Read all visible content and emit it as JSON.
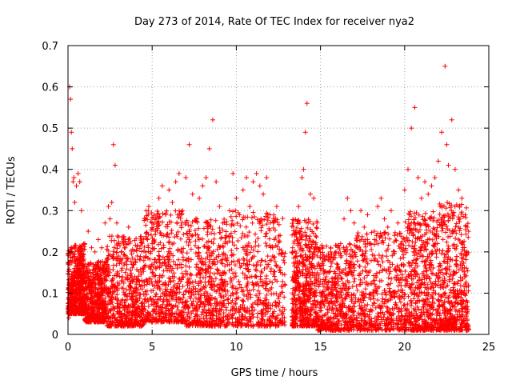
{
  "chart_data": {
    "type": "scatter",
    "title": "Day 273 of 2014, Rate Of TEC Index for receiver nya2",
    "xlabel": "GPS time / hours",
    "ylabel": "ROTI / TECUs",
    "xlim": [
      0,
      25
    ],
    "ylim": [
      0,
      0.7
    ],
    "xticks": [
      0,
      5,
      10,
      15,
      20,
      25
    ],
    "yticks": [
      0,
      0.1,
      0.2,
      0.3,
      0.4,
      0.5,
      0.6,
      0.7
    ],
    "xtick_labels": [
      "0",
      "5",
      "10",
      "15",
      "20",
      "25"
    ],
    "ytick_labels": [
      "0",
      "0.1",
      "0.2",
      "0.3",
      "0.4",
      "0.5",
      "0.6",
      "0.7"
    ],
    "grid": true,
    "marker": "+",
    "color": "#ff0000",
    "series": [
      {
        "x": [
          0.1,
          0.15,
          0.2,
          0.25,
          0.3,
          0.35,
          0.4,
          0.5,
          0.6,
          0.7,
          0.8,
          1.0,
          1.2,
          1.4,
          1.6,
          1.8,
          2.0,
          2.2,
          2.4,
          2.5,
          2.6,
          2.7,
          2.8,
          2.9,
          3.0,
          3.2,
          3.4,
          3.6,
          3.8,
          4.0,
          4.2,
          4.4,
          4.6,
          4.8,
          5.0,
          5.2,
          5.4,
          5.6,
          5.8,
          6.0,
          6.2,
          6.4,
          6.6,
          6.8,
          7.0,
          7.2,
          7.4,
          7.6,
          7.8,
          8.0,
          8.2,
          8.4,
          8.6,
          8.8,
          9.0,
          9.2,
          9.4,
          9.6,
          9.8,
          10.0,
          10.2,
          10.4,
          10.6,
          10.8,
          11.0,
          11.2,
          11.4,
          11.6,
          11.8,
          12.0,
          12.2,
          12.4,
          12.6,
          12.8,
          13.5,
          13.7,
          13.9,
          14.0,
          14.1,
          14.2,
          14.4,
          14.6,
          14.8,
          15.0,
          15.2,
          15.4,
          15.6,
          15.8,
          16.0,
          16.2,
          16.4,
          16.6,
          16.8,
          17.0,
          17.2,
          17.4,
          17.6,
          17.8,
          18.0,
          18.2,
          18.4,
          18.6,
          18.8,
          19.0,
          19.2,
          19.4,
          19.6,
          19.8,
          20.0,
          20.2,
          20.4,
          20.6,
          20.8,
          21.0,
          21.2,
          21.4,
          21.6,
          21.8,
          22.0,
          22.2,
          22.4,
          22.5,
          22.6,
          22.8,
          23.0,
          23.2,
          23.4,
          23.6,
          23.8,
          0.12,
          0.18,
          0.22,
          0.28,
          0.32,
          0.38,
          0.44,
          0.15,
          0.25,
          0.35,
          0.39,
          0.1,
          0.2,
          0.14,
          0.22,
          0.18,
          0.12,
          0.24,
          0.38,
          0.28,
          0.32,
          0.46,
          0.41,
          0.27,
          0.19,
          0.13,
          0.21,
          0.26,
          0.17,
          0.08,
          0.05,
          0.11,
          0.28,
          0.31,
          0.22,
          0.25,
          0.33,
          0.36,
          0.29,
          0.35,
          0.32,
          0.37,
          0.39,
          0.3,
          0.38,
          0.46,
          0.34,
          0.28,
          0.33,
          0.36,
          0.38,
          0.45,
          0.52,
          0.37,
          0.31,
          0.27,
          0.24,
          0.3,
          0.39,
          0.33,
          0.29,
          0.35,
          0.38,
          0.31,
          0.37,
          0.39,
          0.36,
          0.34,
          0.38,
          0.29,
          0.27,
          0.31,
          0.24,
          0.18,
          0.25,
          0.31,
          0.38,
          0.4,
          0.49,
          0.56,
          0.34,
          0.33,
          0.27,
          0.16,
          0.19,
          0.15,
          0.2,
          0.12,
          0.17,
          0.22,
          0.28,
          0.33,
          0.3,
          0.27,
          0.24,
          0.3,
          0.26,
          0.29,
          0.22,
          0.25,
          0.31,
          0.33,
          0.28,
          0.26,
          0.3,
          0.24,
          0.27,
          0.21,
          0.35,
          0.4,
          0.5,
          0.55,
          0.38,
          0.33,
          0.37,
          0.34,
          0.36,
          0.38,
          0.42,
          0.49,
          0.65,
          0.46,
          0.41,
          0.52,
          0.4,
          0.35,
          0.33,
          0.29,
          0.25
        ],
        "y": [
          0.6,
          0.57,
          0.49,
          0.45,
          0.37,
          0.38,
          0.32,
          0.36,
          0.39,
          0.37,
          0.3,
          0.22,
          0.25,
          0.21,
          0.2,
          0.23,
          0.21,
          0.27,
          0.31,
          0.28,
          0.32,
          0.46,
          0.41,
          0.27,
          0.19,
          0.13,
          0.21,
          0.26,
          0.17,
          0.08,
          0.05,
          0.11,
          0.28,
          0.31,
          0.22,
          0.25,
          0.33,
          0.36,
          0.29,
          0.35,
          0.32,
          0.37,
          0.39,
          0.3,
          0.38,
          0.46,
          0.34,
          0.28,
          0.33,
          0.36,
          0.38,
          0.45,
          0.52,
          0.37,
          0.31,
          0.27,
          0.24,
          0.3,
          0.39,
          0.33,
          0.29,
          0.35,
          0.38,
          0.31,
          0.37,
          0.39,
          0.36,
          0.34,
          0.38,
          0.29,
          0.27,
          0.31,
          0.24,
          0.18,
          0.25,
          0.31,
          0.38,
          0.4,
          0.49,
          0.56,
          0.34,
          0.33,
          0.27,
          0.16,
          0.19,
          0.15,
          0.2,
          0.12,
          0.17,
          0.22,
          0.28,
          0.33,
          0.3,
          0.27,
          0.24,
          0.3,
          0.26,
          0.29,
          0.22,
          0.25,
          0.31,
          0.33,
          0.28,
          0.26,
          0.3,
          0.24,
          0.27,
          0.21,
          0.35,
          0.4,
          0.5,
          0.55,
          0.38,
          0.33,
          0.37,
          0.34,
          0.36,
          0.38,
          0.42,
          0.49,
          0.65,
          0.46,
          0.41,
          0.52,
          0.4,
          0.35,
          0.33,
          0.29,
          0.25,
          0.1,
          0.12,
          0.14,
          0.11,
          0.09,
          0.13,
          0.15,
          0.08,
          0.1,
          0.12,
          0.14,
          0.07,
          0.09,
          0.11,
          0.1,
          0.08,
          0.12,
          0.1,
          0.09,
          0.11,
          0.13,
          0.1,
          0.12,
          0.09,
          0.08,
          0.06,
          0.1,
          0.12,
          0.09,
          0.05,
          0.04,
          0.07,
          0.11,
          0.13,
          0.12,
          0.14,
          0.13,
          0.15,
          0.12,
          0.14,
          0.13,
          0.15,
          0.16,
          0.12,
          0.14,
          0.15,
          0.13,
          0.11,
          0.12,
          0.14,
          0.13,
          0.15,
          0.16,
          0.13,
          0.12,
          0.11,
          0.1,
          0.12,
          0.14,
          0.13,
          0.11,
          0.12,
          0.14,
          0.12,
          0.13,
          0.14,
          0.13,
          0.12,
          0.13,
          0.11,
          0.1,
          0.12,
          0.09,
          0.08,
          0.1,
          0.12,
          0.13,
          0.14,
          0.15,
          0.14,
          0.12,
          0.11,
          0.1,
          0.07,
          0.08,
          0.06,
          0.09,
          0.05,
          0.07,
          0.09,
          0.11,
          0.12,
          0.11,
          0.1,
          0.09,
          0.11,
          0.1,
          0.11,
          0.09,
          0.1,
          0.11,
          0.12,
          0.1,
          0.1,
          0.11,
          0.09,
          0.1,
          0.08,
          0.12,
          0.13,
          0.15,
          0.16,
          0.13,
          0.12,
          0.13,
          0.12,
          0.13,
          0.13,
          0.14,
          0.15,
          0.16,
          0.14,
          0.13,
          0.14,
          0.12,
          0.11,
          0.11,
          0.1,
          0.09
        ]
      }
    ]
  }
}
